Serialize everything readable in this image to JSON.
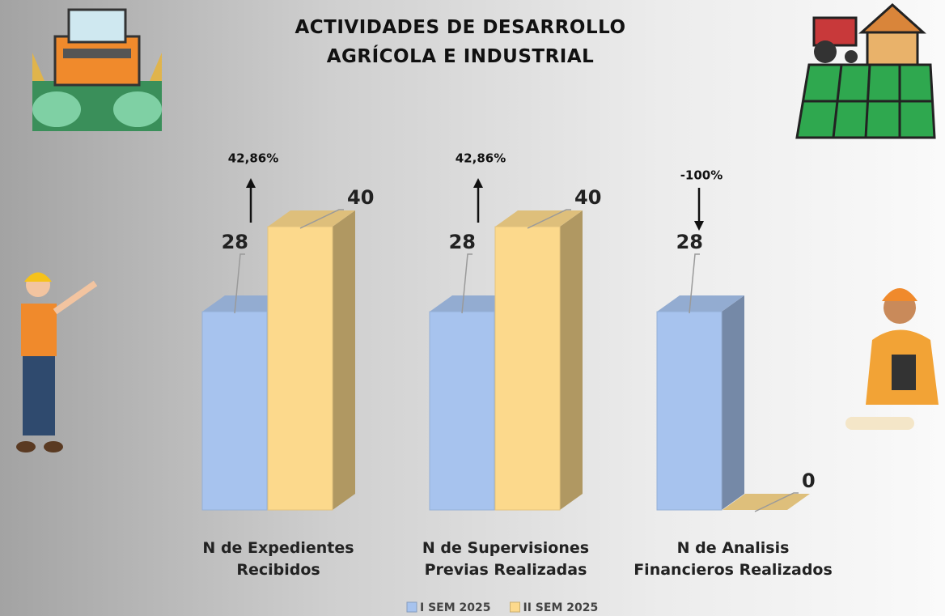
{
  "chart_data": {
    "type": "bar3d",
    "title": "ACTIVIDADES DE DESARROLLO AGRÍCOLA E INDUSTRIAL",
    "categories": [
      "N de Expedientes Recibidos",
      "N de Supervisiones Previas Realizadas",
      "N de Analisis Financieros Realizados"
    ],
    "series": [
      {
        "name": "I SEM 2025",
        "color": "#a7c3ee",
        "values": [
          28,
          28,
          28
        ]
      },
      {
        "name": "II SEM 2025",
        "color": "#fcd98c",
        "values": [
          40,
          40,
          0
        ]
      }
    ],
    "annotations": [
      "42,86%",
      "42,86%",
      "-100%"
    ],
    "legend": "bottom"
  }
}
